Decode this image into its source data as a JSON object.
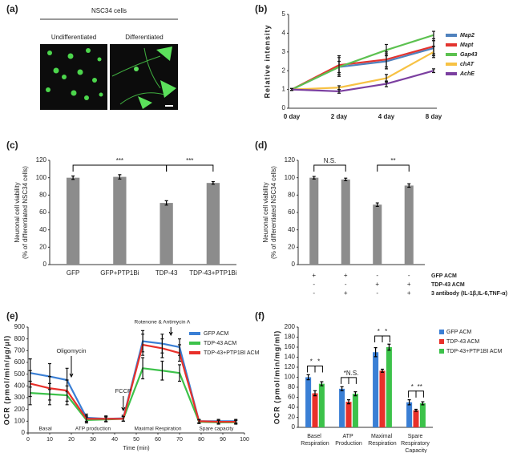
{
  "panel_a": {
    "label": "(a)",
    "title": "NSC34 cells",
    "left": "Undifferentiated",
    "right": "Differentiated"
  },
  "chart_data": [
    {
      "type": "line",
      "panel_label": "(b)",
      "y_label": "Relative intensity",
      "categories": [
        "0 day",
        "2 day",
        "4 day",
        "8 day"
      ],
      "ylim": [
        0,
        5
      ],
      "yticks": [
        0,
        1,
        2,
        3,
        4,
        5
      ],
      "series": [
        {
          "name": "Map2",
          "color": "#4f81bd",
          "values": [
            1,
            2.2,
            2.5,
            3.2
          ],
          "errors": [
            0.05,
            0.5,
            0.4,
            0.4
          ]
        },
        {
          "name": "Mapt",
          "color": "#e3342f",
          "values": [
            1,
            2.3,
            2.6,
            3.3
          ],
          "errors": [
            0.05,
            0.5,
            0.4,
            0.4
          ]
        },
        {
          "name": "Gap43",
          "color": "#5cc150",
          "values": [
            1,
            2.2,
            3.1,
            3.9
          ],
          "errors": [
            0.05,
            0.3,
            0.3,
            0.2
          ]
        },
        {
          "name": "chAT",
          "color": "#f7c244",
          "values": [
            1,
            1.1,
            1.6,
            3.0
          ],
          "errors": [
            0.05,
            0.1,
            0.2,
            0.3
          ]
        },
        {
          "name": "AchE",
          "color": "#7b3fa0",
          "values": [
            1,
            0.9,
            1.3,
            2.0
          ],
          "errors": [
            0.05,
            0.1,
            0.15,
            0.1
          ]
        }
      ]
    },
    {
      "type": "bar",
      "panel_label": "(c)",
      "y_label": [
        "Neuronal cell viability",
        "(% of differentiated NSC34 cells)"
      ],
      "categories": [
        "GFP",
        "GFP+PTP1Bi",
        "TDP-43",
        "TDP-43+PTP1Bi"
      ],
      "values": [
        100,
        101,
        71,
        94
      ],
      "errors": [
        2,
        2.5,
        2.5,
        1.5
      ],
      "color": "#8c8c8c",
      "ylim": [
        0,
        120
      ],
      "yticks": [
        0,
        20,
        40,
        60,
        80,
        100,
        120
      ],
      "significance": [
        "***",
        "***"
      ]
    },
    {
      "type": "bar",
      "panel_label": "(d)",
      "y_label": [
        "Neuronal cell viability",
        "(% of differentiated NSC34 cells)"
      ],
      "categories": [
        null,
        null,
        null,
        null
      ],
      "values": [
        100,
        98,
        69,
        91
      ],
      "errors": [
        1.5,
        1.5,
        2,
        2
      ],
      "color": "#8c8c8c",
      "ylim": [
        0,
        120
      ],
      "yticks": [
        0,
        20,
        40,
        60,
        80,
        100,
        120
      ],
      "significance": [
        "N.S.",
        "**"
      ],
      "treatments": [
        {
          "name": "GFP ACM",
          "marks": [
            "+",
            "+",
            "-",
            "-"
          ]
        },
        {
          "name": "TDP-43 ACM",
          "marks": [
            "-",
            "-",
            "+",
            "+"
          ]
        },
        {
          "name": "3 antibody (IL-1β,IL-6,TNF-α)",
          "marks": [
            "-",
            "+",
            "-",
            "+"
          ]
        }
      ]
    },
    {
      "type": "line",
      "panel_label": "(e)",
      "x_label": "Time (min)",
      "y_label": "OCR (pmol/min/μg/μl)",
      "x": [
        1,
        10,
        18,
        27,
        36,
        44,
        53,
        62,
        70,
        79,
        88,
        96
      ],
      "xlim": [
        0,
        100
      ],
      "xticks": [
        0,
        10,
        20,
        30,
        40,
        50,
        60,
        70,
        80,
        90,
        100
      ],
      "ylim": [
        0,
        900
      ],
      "yticks": [
        0,
        100,
        200,
        300,
        400,
        500,
        600,
        700,
        800,
        900
      ],
      "series": [
        {
          "name": "GFP ACM",
          "color": "#3a7fd5",
          "values": [
            510,
            480,
            450,
            130,
            120,
            125,
            780,
            760,
            730,
            100,
            100,
            100
          ],
          "errors": [
            120,
            110,
            100,
            30,
            25,
            25,
            90,
            80,
            70,
            15,
            15,
            15
          ]
        },
        {
          "name": "TDP-43 ACM",
          "color": "#3cc24a",
          "values": [
            340,
            330,
            320,
            110,
            115,
            120,
            550,
            530,
            510,
            95,
            90,
            90
          ],
          "errors": [
            100,
            90,
            80,
            25,
            20,
            20,
            90,
            80,
            70,
            15,
            15,
            15
          ]
        },
        {
          "name": "TDP-43+PTP1BI ACM",
          "color": "#e8302a",
          "values": [
            420,
            380,
            360,
            120,
            120,
            120,
            750,
            720,
            680,
            100,
            95,
            95
          ],
          "errors": [
            110,
            100,
            90,
            25,
            20,
            20,
            90,
            80,
            70,
            15,
            15,
            15
          ]
        }
      ],
      "annotations": [
        "Oligomycin",
        "FCCP",
        "Rotenone & Antimycin A",
        "Basal",
        "ATP production",
        "Maximal Respiration",
        "Spare capacity"
      ]
    },
    {
      "type": "grouped_bar",
      "panel_label": "(f)",
      "y_label": "OCR (pmol/min/mg/ml)",
      "categories": [
        "Basel Respiration",
        "ATP Production",
        "Maximal Respiration",
        "Spare Respiratory Capacity"
      ],
      "ylim": [
        0,
        200
      ],
      "yticks": [
        0,
        20,
        40,
        60,
        80,
        100,
        120,
        140,
        160,
        180,
        200
      ],
      "series": [
        {
          "name": "GFP ACM",
          "color": "#3a7fd5",
          "values": [
            100,
            77,
            150,
            50
          ],
          "errors": [
            5,
            4,
            9,
            5
          ]
        },
        {
          "name": "TDP-43 ACM",
          "color": "#e8302a",
          "values": [
            68,
            51,
            113,
            34
          ],
          "errors": [
            5,
            4,
            3,
            2
          ]
        },
        {
          "name": "TDP-43+PTP1BI ACM",
          "color": "#3cc24a",
          "values": [
            87,
            67,
            160,
            48
          ],
          "errors": [
            4,
            4,
            6,
            3
          ]
        }
      ],
      "significance": [
        [
          "*",
          "*"
        ],
        [
          "*",
          "N.S."
        ],
        [
          "*",
          "*"
        ],
        [
          "*",
          "**"
        ]
      ]
    }
  ]
}
